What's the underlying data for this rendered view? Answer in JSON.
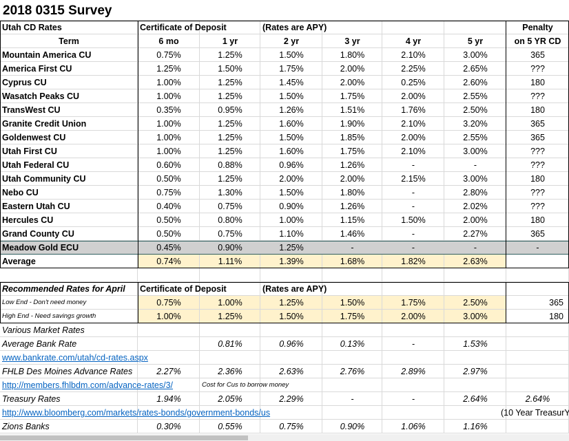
{
  "title": "2018 0315 Survey",
  "cd_table": {
    "section": "Utah CD Rates",
    "group_header": "Certificate of Deposit",
    "note": "(Rates are APY)",
    "penalty_header": "Penalty",
    "columns": [
      "Term",
      "6 mo",
      "1 yr",
      "2 yr",
      "3 yr",
      "4 yr",
      "5 yr",
      "on 5 YR CD"
    ],
    "rows": [
      [
        "Mountain America CU",
        "0.75%",
        "1.25%",
        "1.50%",
        "1.80%",
        "2.10%",
        "3.00%",
        "365"
      ],
      [
        "America First CU",
        "1.25%",
        "1.50%",
        "1.75%",
        "2.00%",
        "2.25%",
        "2.65%",
        "???"
      ],
      [
        "Cyprus CU",
        "1.00%",
        "1.25%",
        "1.45%",
        "2.00%",
        "0.25%",
        "2.60%",
        "180"
      ],
      [
        "Wasatch Peaks CU",
        "1.00%",
        "1.25%",
        "1.50%",
        "1.75%",
        "2.00%",
        "2.55%",
        "???"
      ],
      [
        "TransWest CU",
        "0.35%",
        "0.95%",
        "1.26%",
        "1.51%",
        "1.76%",
        "2.50%",
        "180"
      ],
      [
        "Granite Credit Union",
        "1.00%",
        "1.25%",
        "1.60%",
        "1.90%",
        "2.10%",
        "3.20%",
        "365"
      ],
      [
        "Goldenwest CU",
        "1.00%",
        "1.25%",
        "1.50%",
        "1.85%",
        "2.00%",
        "2.55%",
        "365"
      ],
      [
        "Utah First CU",
        "1.00%",
        "1.25%",
        "1.60%",
        "1.75%",
        "2.10%",
        "3.00%",
        "???"
      ],
      [
        "Utah Federal CU",
        "0.60%",
        "0.88%",
        "0.96%",
        "1.26%",
        "-",
        "-",
        "???"
      ],
      [
        "Utah Community CU",
        "0.50%",
        "1.25%",
        "2.00%",
        "2.00%",
        "2.15%",
        "3.00%",
        "180"
      ],
      [
        "Nebo CU",
        "0.75%",
        "1.30%",
        "1.50%",
        "1.80%",
        "-",
        "2.80%",
        "???"
      ],
      [
        "Eastern Utah CU",
        "0.40%",
        "0.75%",
        "0.90%",
        "1.26%",
        "-",
        "2.02%",
        "???"
      ],
      [
        "Hercules CU",
        "0.50%",
        "0.80%",
        "1.00%",
        "1.15%",
        "1.50%",
        "2.00%",
        "180"
      ],
      [
        "Grand County CU",
        "0.50%",
        "0.75%",
        "1.10%",
        "1.46%",
        "-",
        "2.27%",
        "365"
      ]
    ],
    "highlighted_row": [
      "Meadow Gold ECU",
      "0.45%",
      "0.90%",
      "1.25%",
      "-",
      "-",
      "-",
      "-"
    ],
    "average": [
      "Average",
      "0.74%",
      "1.11%",
      "1.39%",
      "1.68%",
      "1.82%",
      "2.63%"
    ]
  },
  "recommended": {
    "title": "Recommended Rates for April",
    "group_header": "Certificate of Deposit",
    "note": "(Rates are APY)",
    "rows": [
      [
        "Low End - Don't need money",
        "0.75%",
        "1.00%",
        "1.25%",
        "1.50%",
        "1.75%",
        "2.50%",
        "365"
      ],
      [
        "High End - Need savings growth",
        "1.00%",
        "1.25%",
        "1.50%",
        "1.75%",
        "2.00%",
        "3.00%",
        "180"
      ]
    ]
  },
  "market": {
    "title": "Various Market Rates",
    "rows": [
      [
        "Average Bank Rate",
        null,
        "0.81%",
        "0.96%",
        "0.13%",
        "-",
        "1.53%",
        null
      ],
      {
        "link": "www.bankrate.com/utah/cd-rates.aspx"
      },
      [
        "FHLB Des Moines Advance Rates",
        "2.27%",
        "2.36%",
        "2.63%",
        "2.76%",
        "2.89%",
        "2.97%",
        null
      ],
      {
        "link": "http://members.fhlbdm.com/advance-rates/3/",
        "note": "Cost for Cus to borrow money"
      },
      [
        "Treasury Rates",
        "1.94%",
        "2.05%",
        "2.29%",
        "-",
        "-",
        "2.64%",
        "2.64%"
      ],
      {
        "link": "http://www.bloomberg.com/markets/rates-bonds/government-bonds/us",
        "note": "(10 Year TreasurY"
      },
      [
        "Zions Banks",
        "0.30%",
        "0.55%",
        "0.75%",
        "0.90%",
        "1.06%",
        "1.16%",
        null
      ]
    ]
  }
}
